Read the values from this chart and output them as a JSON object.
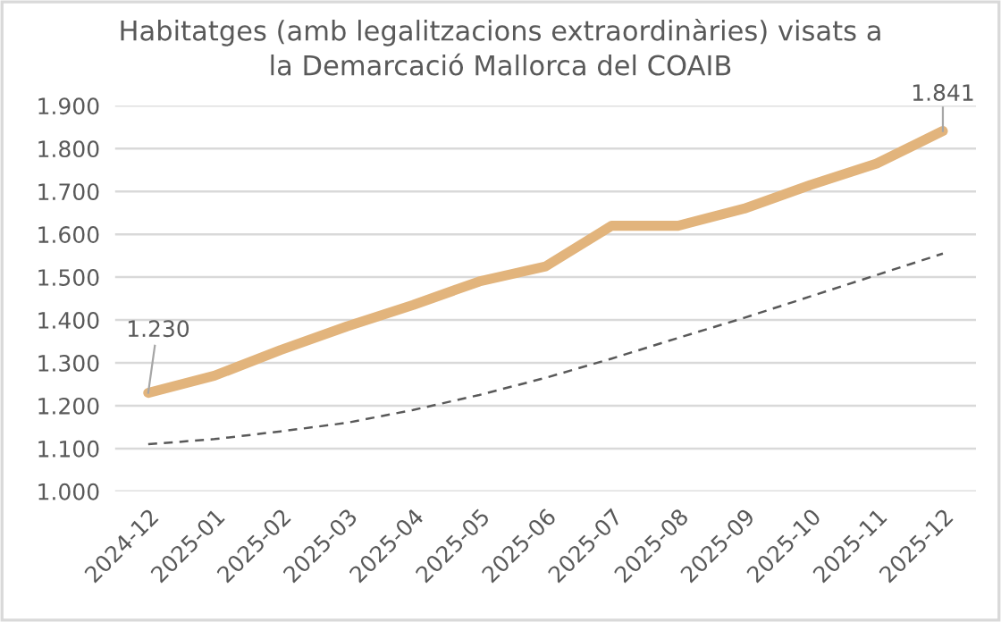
{
  "chart_data": {
    "type": "line",
    "title": "Habitatges (amb legalitzacions extraordinàries) visats a\nla Demarcació Mallorca del COAIB",
    "categories": [
      "2024-12",
      "2025-01",
      "2025-02",
      "2025-03",
      "2025-04",
      "2025-05",
      "2025-06",
      "2025-07",
      "2025-08",
      "2025-09",
      "2025-10",
      "2025-11",
      "2025-12"
    ],
    "series": [
      {
        "color": "#e2b47c",
        "line_style": "solid",
        "values": [
          1230,
          1270,
          1330,
          1385,
          1435,
          1490,
          1525,
          1620,
          1620,
          1660,
          1715,
          1765,
          1841
        ],
        "value_labels": [
          "1.230",
          null,
          null,
          null,
          null,
          null,
          null,
          null,
          null,
          null,
          null,
          null,
          "1.841"
        ]
      },
      {
        "color": "#595959",
        "line_style": "dashed",
        "values": [
          1110,
          1122,
          1140,
          1160,
          1190,
          1225,
          1265,
          1310,
          1358,
          1405,
          1455,
          1505,
          1555
        ]
      }
    ],
    "ylim": [
      1000,
      1900
    ],
    "yticks": [
      {
        "value": 1000,
        "label": "1.000"
      },
      {
        "value": 1100,
        "label": "1.100"
      },
      {
        "value": 1200,
        "label": "1.200"
      },
      {
        "value": 1300,
        "label": "1.300"
      },
      {
        "value": 1400,
        "label": "1.400"
      },
      {
        "value": 1500,
        "label": "1.500"
      },
      {
        "value": 1600,
        "label": "1.600"
      },
      {
        "value": 1700,
        "label": "1.700"
      },
      {
        "value": 1800,
        "label": "1.800"
      },
      {
        "value": 1900,
        "label": "1.900"
      }
    ],
    "grid": "y",
    "legend": false,
    "marker": "none"
  }
}
